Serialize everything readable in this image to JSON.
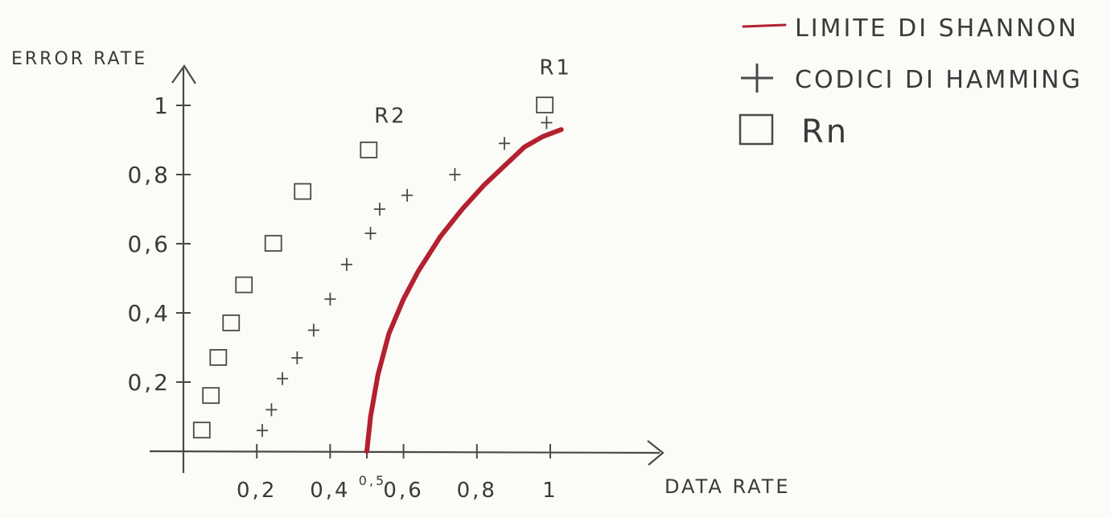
{
  "chart_data": {
    "type": "scatter",
    "title": "",
    "xlabel": "DATA RATE",
    "ylabel": "ERROR RATE",
    "xlim": [
      0,
      1.2
    ],
    "ylim": [
      0,
      1.1
    ],
    "x_ticks": [
      "0,2",
      "0,4",
      "0,5",
      "0,6",
      "0,8",
      "1"
    ],
    "y_ticks": [
      "0,2",
      "0,4",
      "0,6",
      "0,8",
      "1"
    ],
    "legend_position": "top-right",
    "colors": {
      "shannon": "#b3202f",
      "ink": "#4a4a4a"
    },
    "series": [
      {
        "name": "LIMITE DI SHANNON",
        "type": "line",
        "marker": "line",
        "x": [
          0.5,
          0.51,
          0.53,
          0.56,
          0.6,
          0.64,
          0.7,
          0.76,
          0.82,
          0.88,
          0.93,
          0.98,
          1.03
        ],
        "y": [
          0.0,
          0.1,
          0.22,
          0.34,
          0.44,
          0.52,
          0.62,
          0.7,
          0.77,
          0.83,
          0.88,
          0.91,
          0.93
        ]
      },
      {
        "name": "CODICI DI HAMMING",
        "type": "scatter",
        "marker": "plus",
        "x": [
          0.215,
          0.24,
          0.27,
          0.31,
          0.355,
          0.4,
          0.445,
          0.51,
          0.535,
          0.61,
          0.74,
          0.875,
          0.99
        ],
        "y": [
          0.06,
          0.12,
          0.21,
          0.27,
          0.35,
          0.44,
          0.54,
          0.63,
          0.7,
          0.74,
          0.8,
          0.89,
          0.95
        ]
      },
      {
        "name": "Rn",
        "type": "scatter",
        "marker": "square",
        "x": [
          0.05,
          0.075,
          0.095,
          0.13,
          0.165,
          0.245,
          0.325,
          0.505,
          0.985
        ],
        "y": [
          0.06,
          0.16,
          0.27,
          0.37,
          0.48,
          0.6,
          0.75,
          0.87,
          1.0
        ]
      }
    ],
    "annotations": [
      {
        "text": "R1",
        "x": 0.97,
        "y": 1.09
      },
      {
        "text": "R2",
        "x": 0.52,
        "y": 0.95
      }
    ]
  }
}
